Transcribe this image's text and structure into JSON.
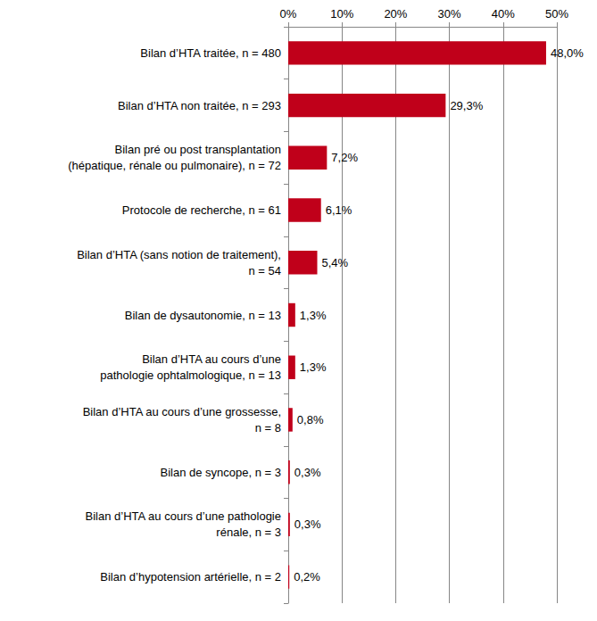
{
  "chart_data": {
    "type": "bar",
    "orientation": "horizontal",
    "categories": [
      "Bilan d’HTA traitée, n = 480",
      "Bilan d’HTA non traitée, n = 293",
      "Bilan pré ou post transplantation\n(hépatique, rénale ou pulmonaire), n = 72",
      "Protocole de recherche, n = 61",
      "Bilan d’HTA (sans notion de traitement),\nn = 54",
      "Bilan de dysautonomie, n = 13",
      "Bilan d’HTA au cours d’une\npathologie ophtalmologique, n = 13",
      "Bilan d’HTA au cours d’une grossesse,\nn = 8",
      "Bilan de syncope, n = 3",
      "Bilan d’HTA au cours d’une pathologie\nrénale, n = 3",
      "Bilan d’hypotension artérielle, n = 2"
    ],
    "values": [
      48.0,
      29.3,
      7.2,
      6.1,
      5.4,
      1.3,
      1.3,
      0.8,
      0.3,
      0.3,
      0.2
    ],
    "value_labels": [
      "48,0%",
      "29,3%",
      "7,2%",
      "6,1%",
      "5,4%",
      "1,3%",
      "1,3%",
      "0,8%",
      "0,3%",
      "0,3%",
      "0,2%"
    ],
    "data_labels": true,
    "color": "#c0001a",
    "xlim": [
      0,
      50
    ],
    "xticks": [
      {
        "value": 0,
        "label": "0%"
      },
      {
        "value": 10,
        "label": "10%"
      },
      {
        "value": 20,
        "label": "20%"
      },
      {
        "value": 30,
        "label": "30%"
      },
      {
        "value": 40,
        "label": "40%"
      },
      {
        "value": 50,
        "label": "50%"
      }
    ],
    "grid": true
  }
}
